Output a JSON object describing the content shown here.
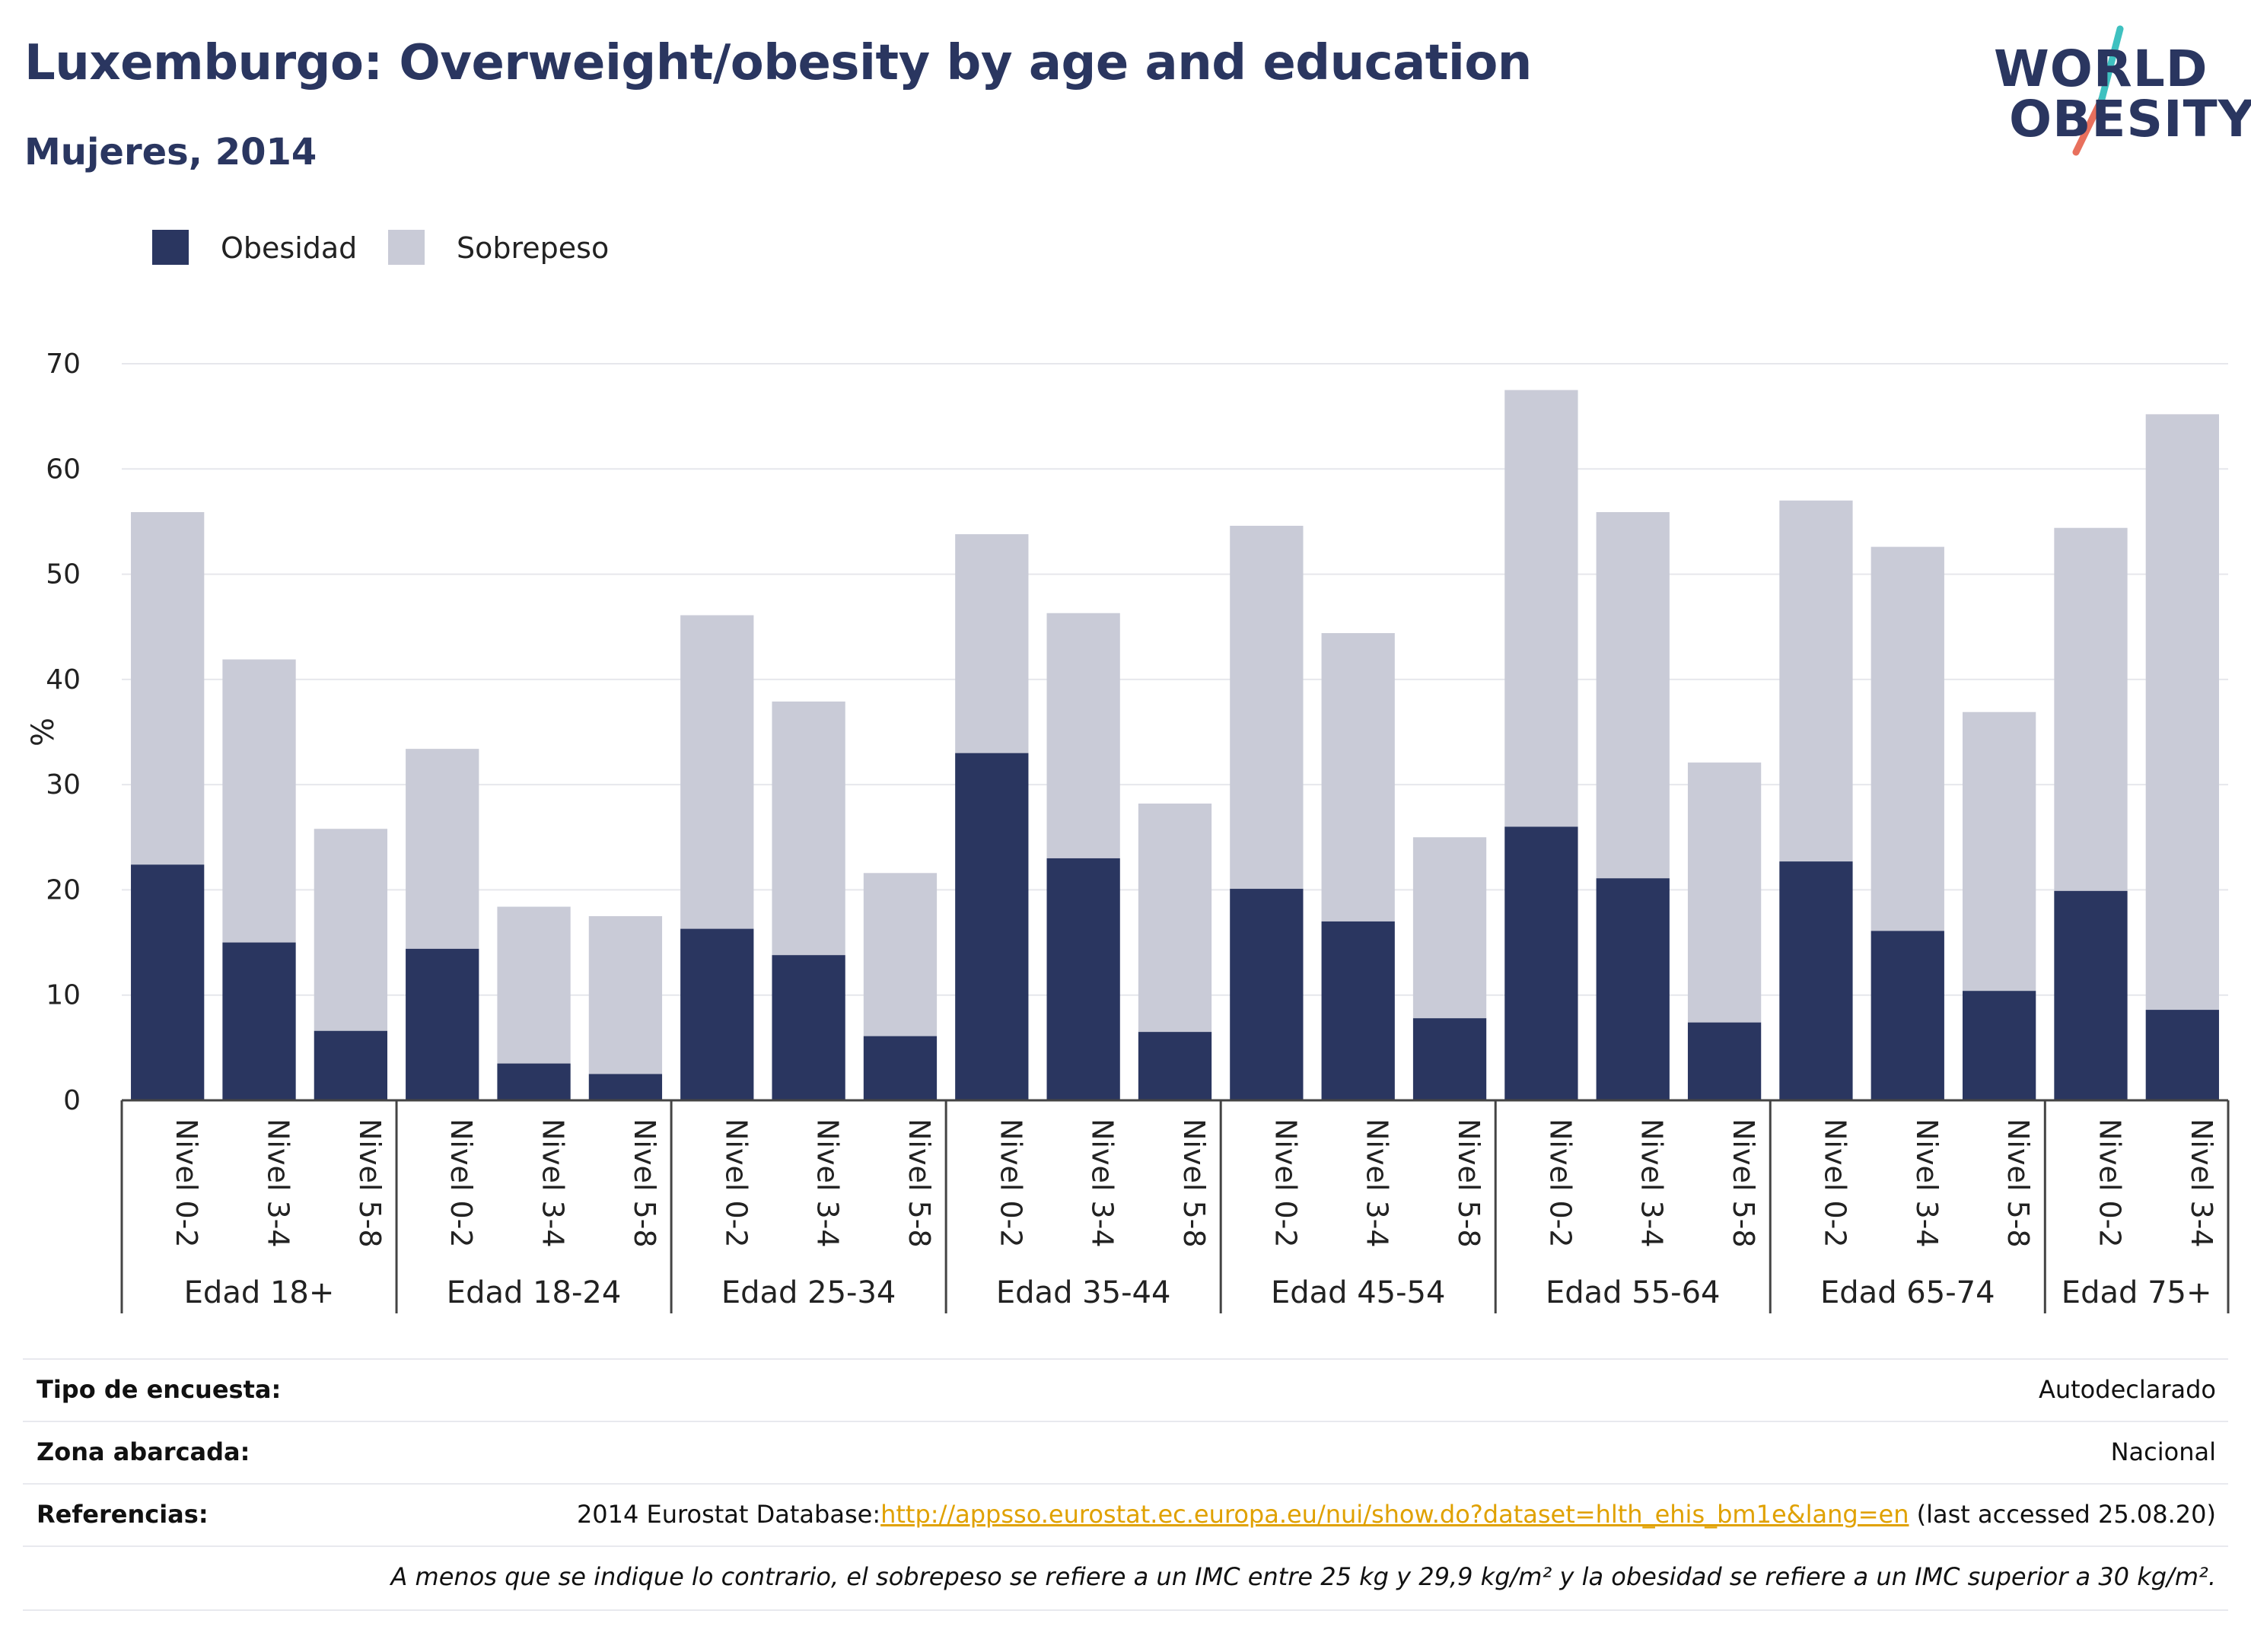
{
  "header": {
    "title": "Luxemburgo: Overweight/obesity by age and education",
    "subtitle": "Mujeres, 2014"
  },
  "logo": {
    "line1": "WORLD",
    "line2": "OBESITY",
    "colors": [
      "#2a3660",
      "#e8705d",
      "#3fc1c0"
    ]
  },
  "legend": [
    {
      "label": "Obesidad",
      "color": "#2a3660"
    },
    {
      "label": "Sobrepeso",
      "color": "#c9cbd7"
    }
  ],
  "chart_data": {
    "type": "bar",
    "stacked": true,
    "ylabel": "%",
    "ylim": [
      0,
      70
    ],
    "yticks": [
      0,
      10,
      20,
      30,
      40,
      50,
      60,
      70
    ],
    "grid": true,
    "legend_position": "top-left",
    "groups": [
      {
        "label": "Edad 18+",
        "categories": [
          "Nivel 0-2",
          "Nivel 3-4",
          "Nivel 5-8"
        ]
      },
      {
        "label": "Edad 18-24",
        "categories": [
          "Nivel 0-2",
          "Nivel 3-4",
          "Nivel 5-8"
        ]
      },
      {
        "label": "Edad 25-34",
        "categories": [
          "Nivel 0-2",
          "Nivel 3-4",
          "Nivel 5-8"
        ]
      },
      {
        "label": "Edad 35-44",
        "categories": [
          "Nivel 0-2",
          "Nivel 3-4",
          "Nivel 5-8"
        ]
      },
      {
        "label": "Edad 45-54",
        "categories": [
          "Nivel 0-2",
          "Nivel 3-4",
          "Nivel 5-8"
        ]
      },
      {
        "label": "Edad 55-64",
        "categories": [
          "Nivel 0-2",
          "Nivel 3-4",
          "Nivel 5-8"
        ]
      },
      {
        "label": "Edad 65-74",
        "categories": [
          "Nivel 0-2",
          "Nivel 3-4",
          "Nivel 5-8"
        ]
      },
      {
        "label": "Edad 75+",
        "categories": [
          "Nivel 0-2",
          "Nivel 3-4"
        ]
      }
    ],
    "series": [
      {
        "name": "Obesidad",
        "color": "#2a3660",
        "values": [
          22.4,
          15.0,
          6.6,
          14.4,
          3.5,
          2.5,
          16.3,
          13.8,
          6.1,
          33.0,
          23.0,
          6.5,
          20.1,
          17.0,
          7.8,
          26.0,
          21.1,
          7.4,
          22.7,
          16.1,
          10.4,
          19.9,
          8.6
        ]
      },
      {
        "name": "Sobrepeso",
        "color": "#c9cbd7",
        "values": [
          33.5,
          26.9,
          19.2,
          19.0,
          14.9,
          15.0,
          29.8,
          24.1,
          15.5,
          20.8,
          23.3,
          21.7,
          34.5,
          27.4,
          17.2,
          41.5,
          34.8,
          24.7,
          34.3,
          36.5,
          26.5,
          34.5,
          56.6
        ]
      }
    ]
  },
  "info": {
    "survey_type": {
      "label": "Tipo de encuesta:",
      "value": "Autodeclarado"
    },
    "coverage": {
      "label": "Zona abarcada:",
      "value": "Nacional"
    },
    "references": {
      "label": "Referencias:",
      "prefix": "2014 Eurostat Database:",
      "link": "http://appsso.eurostat.ec.europa.eu/nui/show.do?dataset=hlth_ehis_bm1e&lang=en",
      "suffix": " (last accessed 25.08.20)"
    },
    "note": "A menos que se indique lo contrario, el sobrepeso se refiere a un IMC entre 25 kg y 29,9 kg/m² y la obesidad se refiere a un IMC superior a 30 kg/m²."
  }
}
